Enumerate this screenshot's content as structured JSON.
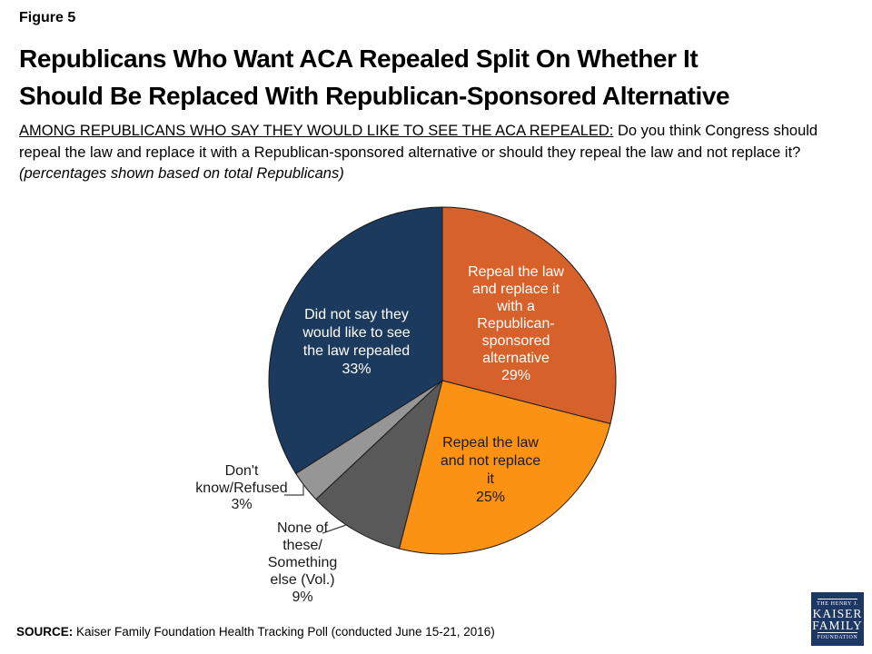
{
  "figure_label": "Figure 5",
  "title": "Republicans Who Want ACA Repealed Split On Whether It\nShould Be Replaced With Republican-Sponsored Alternative",
  "subtitle": {
    "underlined": "AMONG REPUBLICANS WHO SAY THEY WOULD LIKE TO SEE THE ACA REPEALED:",
    "question": " Do you think Congress should repeal the law and replace it with a Republican-sponsored alternative or should they repeal the law and not replace it? ",
    "note_italic": "(percentages shown based on total Republicans)"
  },
  "chart_data": {
    "type": "pie",
    "title": "",
    "start_angle_deg": 0,
    "direction": "clockwise",
    "units": "percent of total Republicans",
    "outline_color": "#1a1a1a",
    "segments": [
      {
        "label": "Repeal the law and replace it with a Republican-sponsored alternative",
        "value": 29,
        "color": "#D6612B",
        "label_color": "#FFFFFF",
        "label_position": "inside",
        "label_display": "Repeal the law\nand replace it\nwith a\nRepublican-\nsponsored\nalternative\n29%"
      },
      {
        "label": "Repeal the law and not replace it",
        "value": 25,
        "color": "#FC9214",
        "label_color": "#1A1A1A",
        "label_position": "inside",
        "label_display": "Repeal the law\nand not replace\nit\n25%"
      },
      {
        "label": "None of these/Something else (Vol.)",
        "value": 9,
        "color": "#595959",
        "label_color": "#1A1A1A",
        "label_position": "outside",
        "label_display": "None of\nthese/\nSomething\nelse (Vol.)\n9%"
      },
      {
        "label": "Don't know/Refused",
        "value": 3,
        "color": "#969696",
        "label_color": "#1A1A1A",
        "label_position": "outside",
        "label_display": "Don't\nknow/Refused\n3%"
      },
      {
        "label": "Did not say they would like to see the law repealed",
        "value": 33,
        "color": "#1C3A5E",
        "label_color": "#FFFFFF",
        "label_position": "inside",
        "label_display": "Did not say they\nwould like to see\nthe law repealed\n33%"
      }
    ]
  },
  "source": {
    "prefix": "SOURCE:",
    "text": " Kaiser Family Foundation Health Tracking Poll (conducted June 15-21, 2016)"
  },
  "logo": {
    "line1": "THE HENRY J.",
    "line2": "KAISER",
    "line3": "FAMILY",
    "line4": "FOUNDATION",
    "bg_color": "#1E3866"
  }
}
